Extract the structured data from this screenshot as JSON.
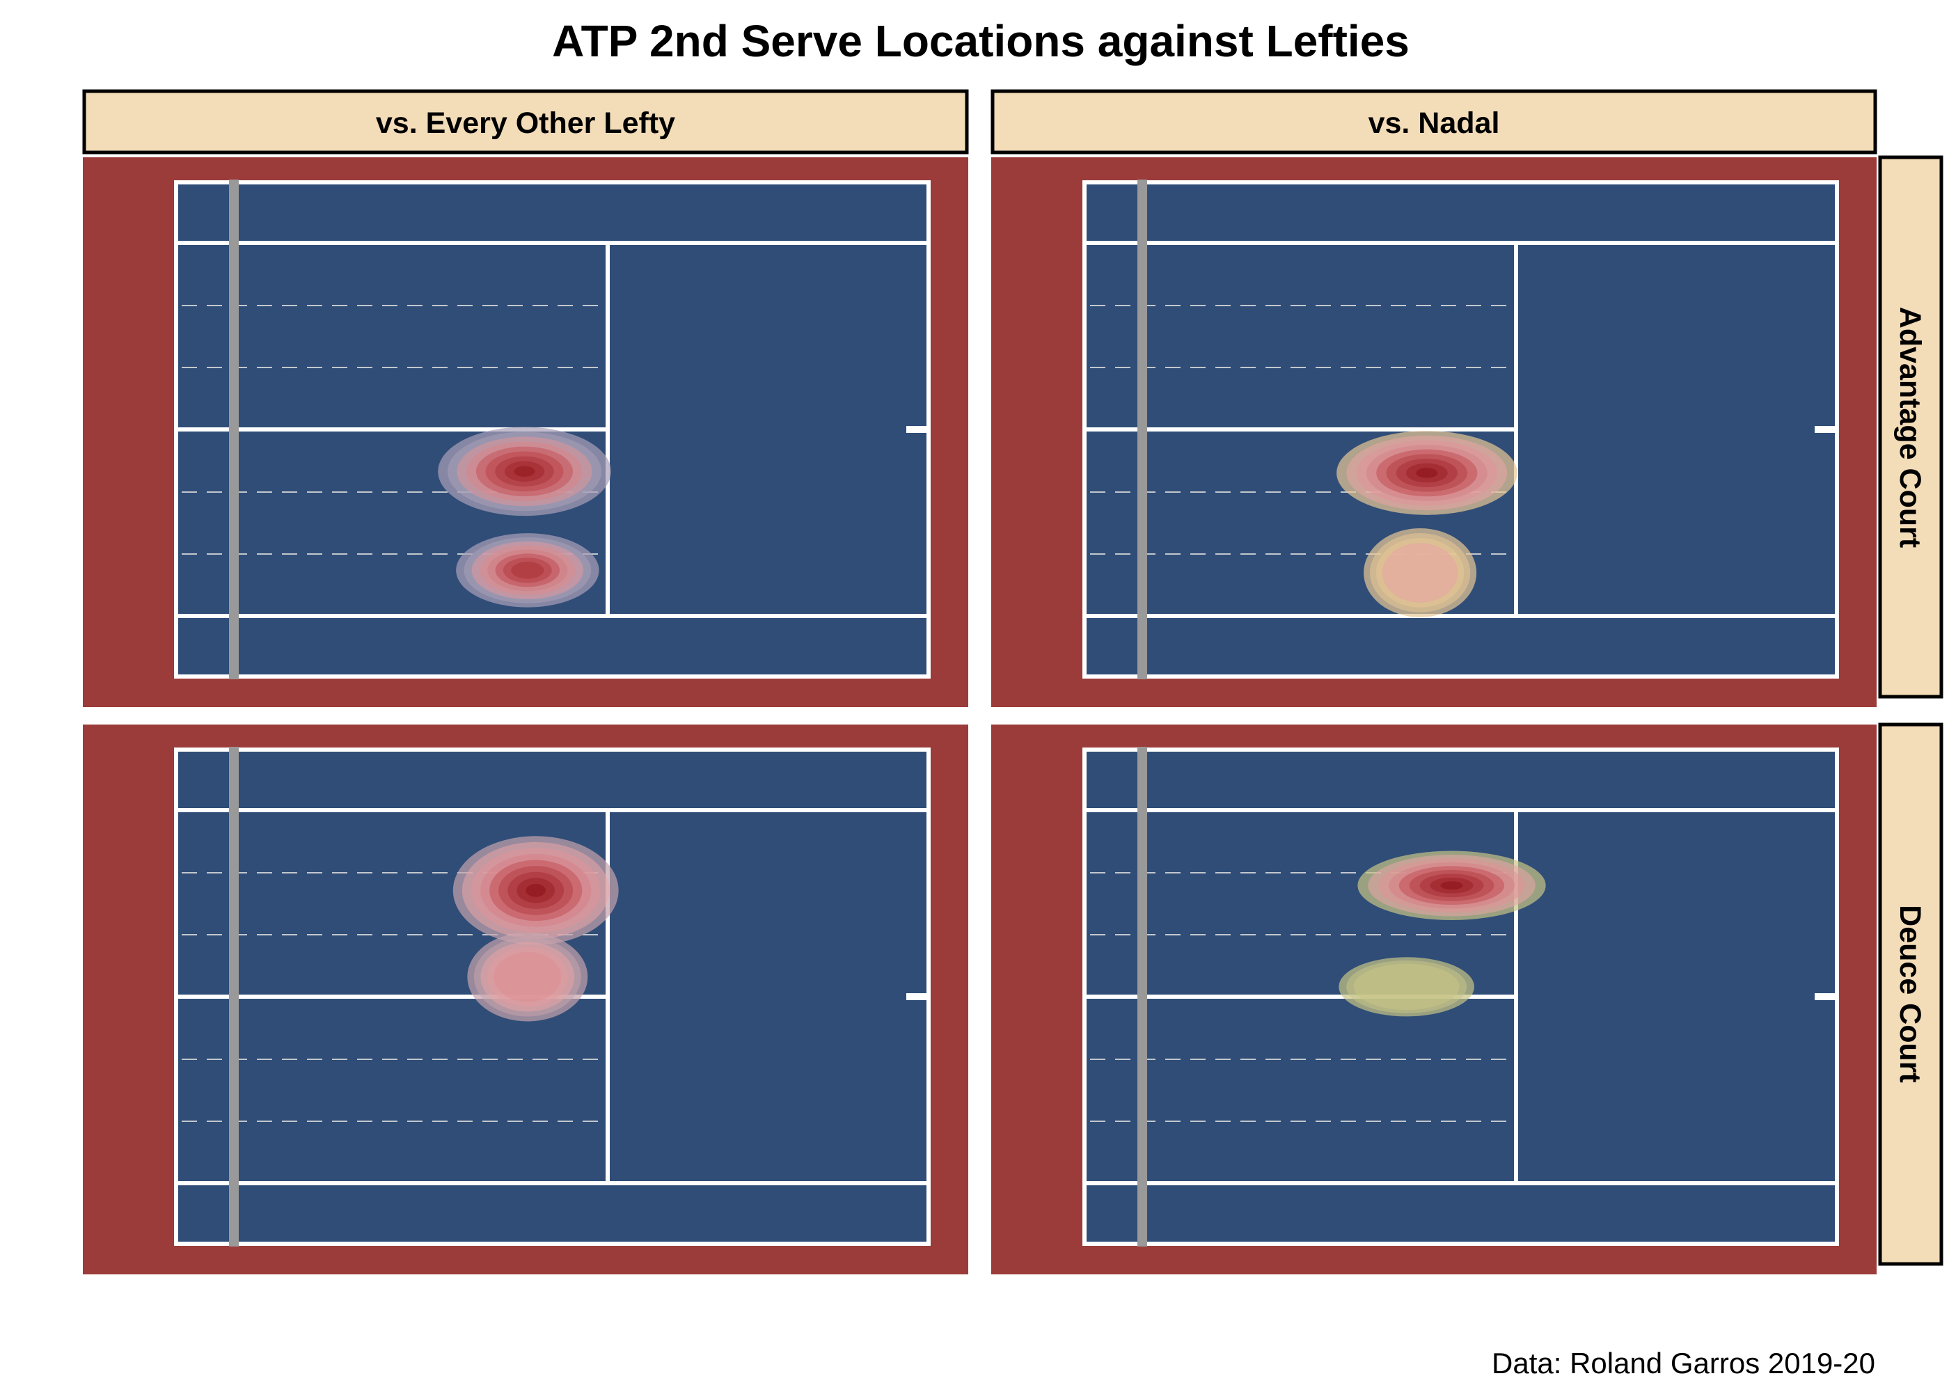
{
  "chart_data": {
    "type": "heatmap",
    "title": "ATP 2nd Serve Locations against Lefties",
    "caption": "Data: Roland Garros 2019-20",
    "columns": [
      "vs. Every Other Lefty",
      "vs. Nadal"
    ],
    "rows": [
      "Advantage Court",
      "Deuce Court"
    ],
    "colors": {
      "background": "#9b3b3a",
      "court": "#2f4d77",
      "lines": "#ffffff",
      "net": "#999999",
      "strip_fill": "#f3dcb8",
      "density_low": "#e8c896",
      "density_high": "#8b1116"
    },
    "panels": [
      {
        "column": "vs. Every Other Lefty",
        "row": "Advantage Court",
        "density_blobs": [
          {
            "cx": 0.463,
            "cy": 0.585,
            "rx": 0.115,
            "ry": 0.09,
            "peak": 0.95
          },
          {
            "cx": 0.467,
            "cy": 0.785,
            "rx": 0.095,
            "ry": 0.075,
            "peak": 0.85
          }
        ],
        "low_color": "#a9a0b8"
      },
      {
        "column": "vs. Nadal",
        "row": "Advantage Court",
        "density_blobs": [
          {
            "cx": 0.455,
            "cy": 0.588,
            "rx": 0.12,
            "ry": 0.085,
            "peak": 1.0
          },
          {
            "cx": 0.446,
            "cy": 0.79,
            "rx": 0.075,
            "ry": 0.09,
            "peak": 0.4
          }
        ],
        "low_color": "#e8c896"
      },
      {
        "column": "vs. Every Other Lefty",
        "row": "Deuce Court",
        "density_blobs": [
          {
            "cx": 0.478,
            "cy": 0.285,
            "rx": 0.11,
            "ry": 0.11,
            "peak": 1.0
          },
          {
            "cx": 0.467,
            "cy": 0.46,
            "rx": 0.08,
            "ry": 0.09,
            "peak": 0.55
          }
        ],
        "low_color": "#c6a2ac"
      },
      {
        "column": "vs. Nadal",
        "row": "Deuce Court",
        "density_blobs": [
          {
            "cx": 0.488,
            "cy": 0.275,
            "rx": 0.125,
            "ry": 0.07,
            "peak": 1.0
          },
          {
            "cx": 0.428,
            "cy": 0.48,
            "rx": 0.09,
            "ry": 0.06,
            "peak": 0.22
          }
        ],
        "low_color": "#c7c486"
      }
    ]
  }
}
